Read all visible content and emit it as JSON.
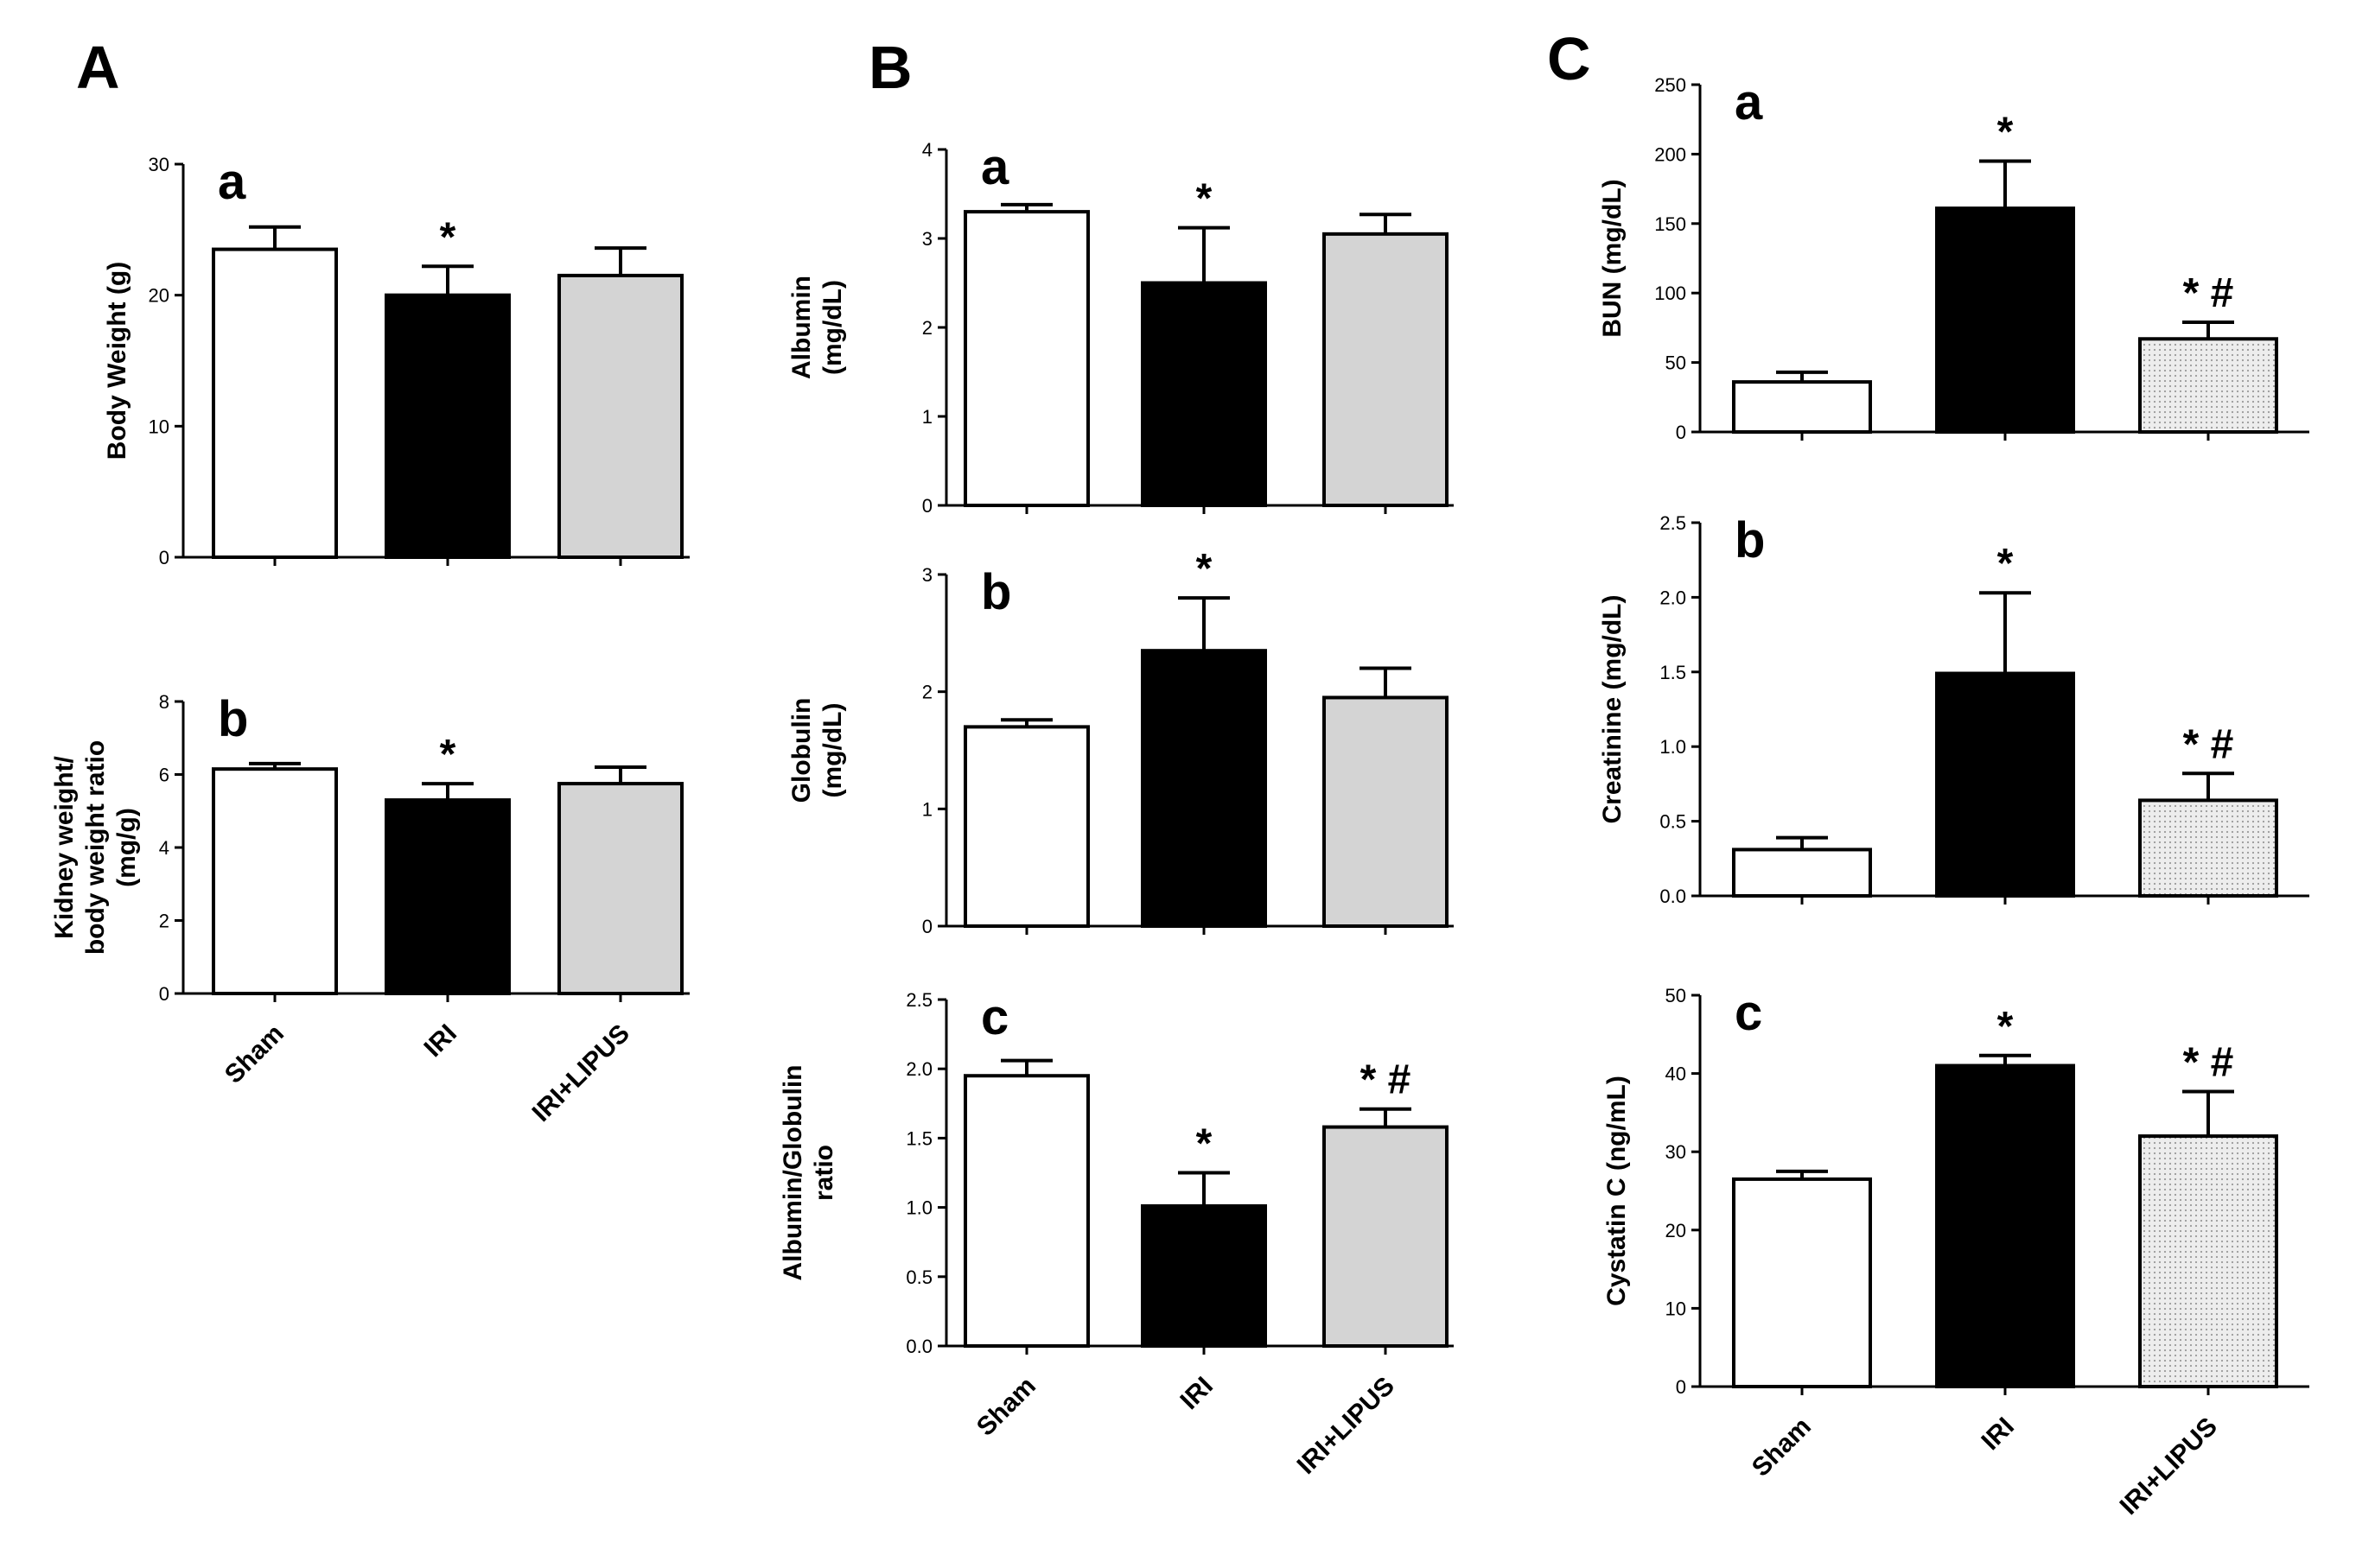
{
  "panels": [
    {
      "id": "A",
      "label": "A"
    },
    {
      "id": "B",
      "label": "B"
    },
    {
      "id": "C",
      "label": "C"
    }
  ],
  "colors": {
    "sham": "#ffffff",
    "iri": "#000000",
    "lipus_gray": "#d4d4d4",
    "lipus_dotted": "#e6e6e6"
  },
  "chart_data": [
    {
      "id": "A-a",
      "panel": "A",
      "sublabel": "a",
      "type": "bar",
      "ylabel": [
        "Body Weight (g)"
      ],
      "ylim": [
        0,
        30
      ],
      "yticks": [
        0,
        10,
        20,
        30
      ],
      "tick_labels": [
        "0",
        "10",
        "20",
        "30"
      ],
      "categories": [
        "Sham",
        "IRI",
        "IRI+LIPUS"
      ],
      "show_categories": false,
      "values": [
        23.5,
        20.0,
        21.5
      ],
      "errors": [
        1.7,
        2.2,
        2.1
      ],
      "annotations": [
        "",
        "*",
        ""
      ],
      "fills": [
        "sham",
        "iri",
        "lipus_gray"
      ]
    },
    {
      "id": "A-b",
      "panel": "A",
      "sublabel": "b",
      "type": "bar",
      "ylabel": [
        "Kidney weight/",
        "body weight ratio",
        "(mg/g)"
      ],
      "ylim": [
        0,
        8
      ],
      "yticks": [
        0,
        2,
        4,
        6,
        8
      ],
      "tick_labels": [
        "0",
        "2",
        "4",
        "6",
        "8"
      ],
      "categories": [
        "Sham",
        "IRI",
        "IRI+LIPUS"
      ],
      "show_categories": true,
      "values": [
        6.15,
        5.3,
        5.75
      ],
      "errors": [
        0.15,
        0.45,
        0.45
      ],
      "annotations": [
        "",
        "*",
        ""
      ],
      "fills": [
        "sham",
        "iri",
        "lipus_gray"
      ]
    },
    {
      "id": "B-a",
      "panel": "B",
      "sublabel": "a",
      "type": "bar",
      "ylabel": [
        "Albumin",
        "(mg/dL)"
      ],
      "ylim": [
        0,
        4
      ],
      "yticks": [
        0,
        1,
        2,
        3,
        4
      ],
      "tick_labels": [
        "0",
        "1",
        "2",
        "3",
        "4"
      ],
      "categories": [
        "Sham",
        "IRI",
        "IRI+LIPUS"
      ],
      "show_categories": false,
      "values": [
        3.3,
        2.5,
        3.05
      ],
      "errors": [
        0.08,
        0.62,
        0.22
      ],
      "annotations": [
        "",
        "*",
        ""
      ],
      "fills": [
        "sham",
        "iri",
        "lipus_gray"
      ]
    },
    {
      "id": "B-b",
      "panel": "B",
      "sublabel": "b",
      "type": "bar",
      "ylabel": [
        "Globulin",
        "(mg/dL)"
      ],
      "ylim": [
        0,
        3
      ],
      "yticks": [
        0,
        1,
        2,
        3
      ],
      "tick_labels": [
        "0",
        "1",
        "2",
        "3"
      ],
      "categories": [
        "Sham",
        "IRI",
        "IRI+LIPUS"
      ],
      "show_categories": false,
      "values": [
        1.7,
        2.35,
        1.95
      ],
      "errors": [
        0.06,
        0.45,
        0.25
      ],
      "annotations": [
        "",
        "*",
        ""
      ],
      "fills": [
        "sham",
        "iri",
        "lipus_gray"
      ]
    },
    {
      "id": "B-c",
      "panel": "B",
      "sublabel": "c",
      "type": "bar",
      "ylabel": [
        "Albumin/Globulin",
        "ratio"
      ],
      "ylim": [
        0,
        2.5
      ],
      "yticks": [
        0,
        0.5,
        1,
        1.5,
        2,
        2.5
      ],
      "tick_labels": [
        "0.0",
        "0.5",
        "1.0",
        "1.5",
        "2.0",
        "2.5"
      ],
      "categories": [
        "Sham",
        "IRI",
        "IRI+LIPUS"
      ],
      "show_categories": true,
      "values": [
        1.95,
        1.01,
        1.58
      ],
      "errors": [
        0.11,
        0.24,
        0.13
      ],
      "annotations": [
        "",
        "*",
        "* #"
      ],
      "fills": [
        "sham",
        "iri",
        "lipus_gray"
      ]
    },
    {
      "id": "C-a",
      "panel": "C",
      "sublabel": "a",
      "type": "bar",
      "ylabel": [
        "BUN (mg/dL)"
      ],
      "ylim": [
        0,
        250
      ],
      "yticks": [
        0,
        50,
        100,
        150,
        200,
        250
      ],
      "tick_labels": [
        "0",
        "50",
        "100",
        "150",
        "200",
        "250"
      ],
      "categories": [
        "Sham",
        "IRI",
        "IRI+LIPUS"
      ],
      "show_categories": false,
      "values": [
        36,
        161,
        67
      ],
      "errors": [
        7,
        34,
        12
      ],
      "annotations": [
        "",
        "*",
        "* #"
      ],
      "fills": [
        "sham",
        "iri",
        "lipus_dotted"
      ]
    },
    {
      "id": "C-b",
      "panel": "C",
      "sublabel": "b",
      "type": "bar",
      "ylabel": [
        "Creatinine (mg/dL)"
      ],
      "ylim": [
        0,
        2.5
      ],
      "yticks": [
        0,
        0.5,
        1,
        1.5,
        2,
        2.5
      ],
      "tick_labels": [
        "0.0",
        "0.5",
        "1.0",
        "1.5",
        "2.0",
        "2.5"
      ],
      "categories": [
        "Sham",
        "IRI",
        "IRI+LIPUS"
      ],
      "show_categories": false,
      "values": [
        0.31,
        1.49,
        0.64
      ],
      "errors": [
        0.08,
        0.54,
        0.18
      ],
      "annotations": [
        "",
        "*",
        "* #"
      ],
      "fills": [
        "sham",
        "iri",
        "lipus_dotted"
      ]
    },
    {
      "id": "C-c",
      "panel": "C",
      "sublabel": "c",
      "type": "bar",
      "ylabel": [
        "Cystatin C (ng/mL)"
      ],
      "ylim": [
        0,
        50
      ],
      "yticks": [
        0,
        10,
        20,
        30,
        40,
        50
      ],
      "tick_labels": [
        "0",
        "10",
        "20",
        "30",
        "40",
        "50"
      ],
      "categories": [
        "Sham",
        "IRI",
        "IRI+LIPUS"
      ],
      "show_categories": true,
      "values": [
        26.5,
        41,
        32
      ],
      "errors": [
        1,
        1.3,
        5.7
      ],
      "annotations": [
        "",
        "*",
        "* #"
      ],
      "fills": [
        "sham",
        "iri",
        "lipus_dotted"
      ]
    }
  ]
}
